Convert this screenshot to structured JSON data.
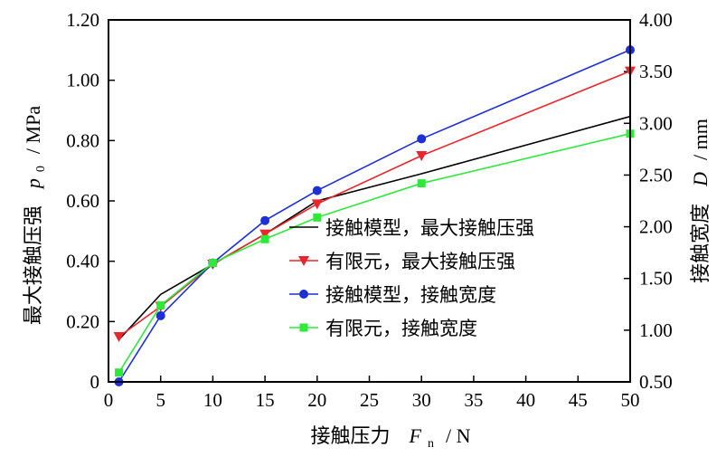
{
  "chart_data": {
    "type": "line",
    "xlabel": {
      "text": "接触压力",
      "var": "F",
      "sub": "n",
      "unit": "/ N"
    },
    "ylabel_left": {
      "text": "最大接触压强",
      "var": "p",
      "sub": "0",
      "unit": "/ MPa"
    },
    "ylabel_right": {
      "text": "接触宽度",
      "var": "D",
      "unit": "/ mm"
    },
    "xlim": [
      0,
      50
    ],
    "ylim_left": [
      0,
      1.2
    ],
    "ylim_right": [
      0.5,
      4.0
    ],
    "x_ticks": [
      "0",
      "5",
      "10",
      "15",
      "20",
      "25",
      "30",
      "35",
      "40",
      "45",
      "50"
    ],
    "y_left_ticks": [
      "0",
      "0.20",
      "0.40",
      "0.60",
      "0.80",
      "1.00",
      "1.20"
    ],
    "y_right_ticks": [
      "0.50",
      "1.00",
      "1.50",
      "2.00",
      "2.50",
      "3.00",
      "3.50",
      "4.00"
    ],
    "legend_position": "right",
    "grid": false,
    "series": [
      {
        "name": "接触模型，最大接触压强",
        "axis": "left",
        "color": "#000000",
        "marker": "none",
        "x": [
          1,
          5,
          10,
          15,
          20,
          30,
          50
        ],
        "y": [
          0.14,
          0.29,
          0.39,
          0.49,
          0.6,
          0.69,
          0.88
        ]
      },
      {
        "name": "有限元，最大接触压强",
        "axis": "left",
        "color": "#e8262b",
        "marker": "triangle-down",
        "x": [
          1,
          5,
          10,
          15,
          20,
          30,
          50
        ],
        "y": [
          0.15,
          0.25,
          0.39,
          0.49,
          0.59,
          0.75,
          1.03
        ]
      },
      {
        "name": "接触模型，接触宽度",
        "axis": "right",
        "color": "#1d2fd6",
        "marker": "circle",
        "x": [
          1,
          5,
          10,
          15,
          20,
          30,
          50
        ],
        "y": [
          0.5,
          1.14,
          1.65,
          2.06,
          2.35,
          2.85,
          3.71
        ]
      },
      {
        "name": "有限元，接触宽度",
        "axis": "right",
        "color": "#2ee83a",
        "marker": "square",
        "x": [
          1,
          5,
          10,
          15,
          20,
          30,
          50
        ],
        "y": [
          0.59,
          1.24,
          1.65,
          1.88,
          2.09,
          2.42,
          2.9
        ]
      }
    ]
  }
}
